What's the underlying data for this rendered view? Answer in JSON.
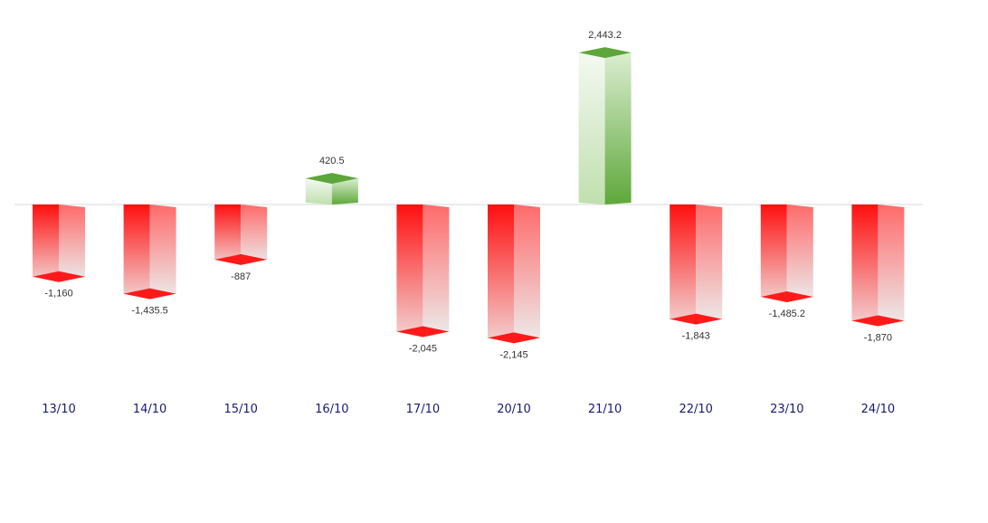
{
  "chart_data": {
    "type": "bar",
    "categories": [
      "13/10",
      "14/10",
      "15/10",
      "16/10",
      "17/10",
      "20/10",
      "21/10",
      "22/10",
      "23/10",
      "24/10"
    ],
    "values": [
      -1160,
      -1435.5,
      -887,
      420.5,
      -2045,
      -2145,
      2443.2,
      -1843,
      -1485.2,
      -1870
    ],
    "value_labels": [
      "-1,160",
      "-1,435.5",
      "-887",
      "420.5",
      "-2,045",
      "-2,145",
      "2,443.2",
      "-1,843",
      "-1,485.2",
      "-1,870"
    ],
    "colors": {
      "positive": "#5da639",
      "negative": "#ff1a1a",
      "category_text": "#1a1a6e"
    },
    "grid": false,
    "legend": "none"
  }
}
